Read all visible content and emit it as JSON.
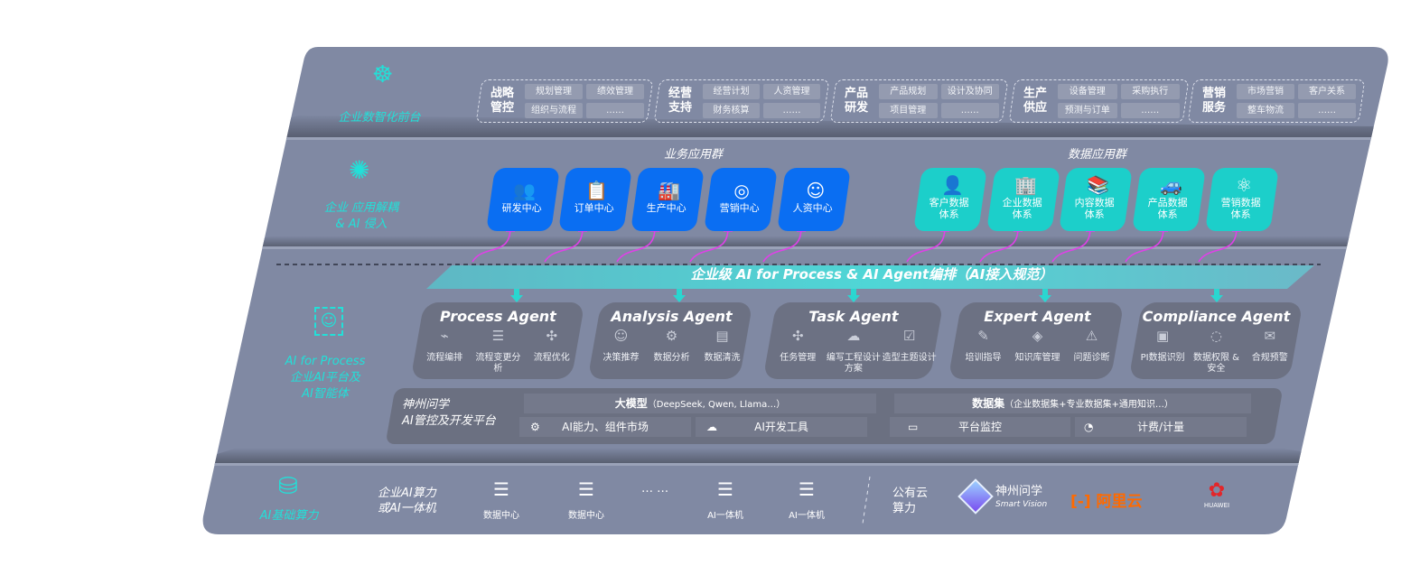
{
  "layers": {
    "front": {
      "label": "企业数智化前台",
      "icon": "brain-icon"
    },
    "apps": {
      "label_line1": "企业 应用解耦",
      "label_line2": "& AI 侵入",
      "icon": "molecule-icon"
    },
    "ai": {
      "label_line1": "AI for Process",
      "label_line2": "企业AI平台及",
      "label_line3": "AI智能体",
      "icon": "user-scan-icon"
    },
    "compute": {
      "label": "AI基础算力",
      "icon": "database-icon"
    }
  },
  "front_groups": [
    {
      "title": "战略管控",
      "items": [
        "规划管理",
        "绩效管理",
        "组织与流程",
        "……"
      ]
    },
    {
      "title": "经营支持",
      "items": [
        "经营计划",
        "人资管理",
        "财务核算",
        "……"
      ]
    },
    {
      "title": "产品研发",
      "items": [
        "产品规划",
        "设计及协同",
        "项目管理",
        "……"
      ]
    },
    {
      "title": "生产供应",
      "items": [
        "设备管理",
        "采购执行",
        "预测与订单",
        "……"
      ]
    },
    {
      "title": "营销服务",
      "items": [
        "市场营销",
        "客户关系",
        "整车物流",
        "……"
      ]
    }
  ],
  "business_apps": {
    "title": "业务应用群",
    "items": [
      {
        "label": "研发中心",
        "icon": "users-icon"
      },
      {
        "label": "订单中心",
        "icon": "clipboard-icon"
      },
      {
        "label": "生产中心",
        "icon": "factory-icon"
      },
      {
        "label": "营销中心",
        "icon": "target-icon"
      },
      {
        "label": "人资中心",
        "icon": "person-icon"
      }
    ]
  },
  "data_apps": {
    "title": "数据应用群",
    "items": [
      {
        "label": "客户数据体系",
        "icon": "user-icon"
      },
      {
        "label": "企业数据体系",
        "icon": "building-icon"
      },
      {
        "label": "内容数据体系",
        "icon": "books-icon"
      },
      {
        "label": "产品数据体系",
        "icon": "car-icon"
      },
      {
        "label": "营销数据体系",
        "icon": "atom-icon"
      }
    ]
  },
  "banner": "企业级 AI for Process & AI Agent编排（AI接入规范）",
  "agents": [
    {
      "title": "Process Agent",
      "features": [
        "流程编排",
        "流程变更分析",
        "流程优化"
      ]
    },
    {
      "title": "Analysis Agent",
      "features": [
        "决策推荐",
        "数据分析",
        "数据清洗"
      ]
    },
    {
      "title": "Task Agent",
      "features": [
        "任务管理",
        "编写工程设计方案",
        "造型主题设计"
      ]
    },
    {
      "title": "Expert Agent",
      "features": [
        "培训指导",
        "知识库管理",
        "问题诊断"
      ]
    },
    {
      "title": "Compliance Agent",
      "features": [
        "PI数据识别",
        "数据权限 & 安全",
        "合规预警"
      ]
    }
  ],
  "platform": {
    "title_line1": "神州问学",
    "title_line2": "AI管控及开发平台",
    "models": "大模型",
    "models_note": "（DeepSeek, Qwen, Llama…）",
    "datasets": "数据集",
    "datasets_note": "（企业数据集+专业数据集+通用知识…）",
    "market": "AI能力、组件市场",
    "devtools": "AI开发工具",
    "monitor": "平台监控",
    "billing": "计费/计量"
  },
  "compute": {
    "enterprise_line1": "企业AI算力",
    "enterprise_line2": "或AI一体机",
    "nodes": [
      "数据中心",
      "数据中心",
      "AI一体机",
      "AI一体机"
    ],
    "ellipsis": "… …",
    "public_line1": "公有云",
    "public_line2": "算力",
    "vendors": {
      "smartvision_cn": "神州问学",
      "smartvision_en": "Smart Vision",
      "aliyun": "阿里云",
      "huawei": "HUAWEI"
    }
  },
  "colors": {
    "panel": "#8089a3",
    "accent": "#22e0d8",
    "blue_tile": "#0a6ef2",
    "cyan_tile": "#1ccfca",
    "arrow": "#e040e8",
    "aliyun": "#ff6a00",
    "huawei": "#e3262a"
  }
}
